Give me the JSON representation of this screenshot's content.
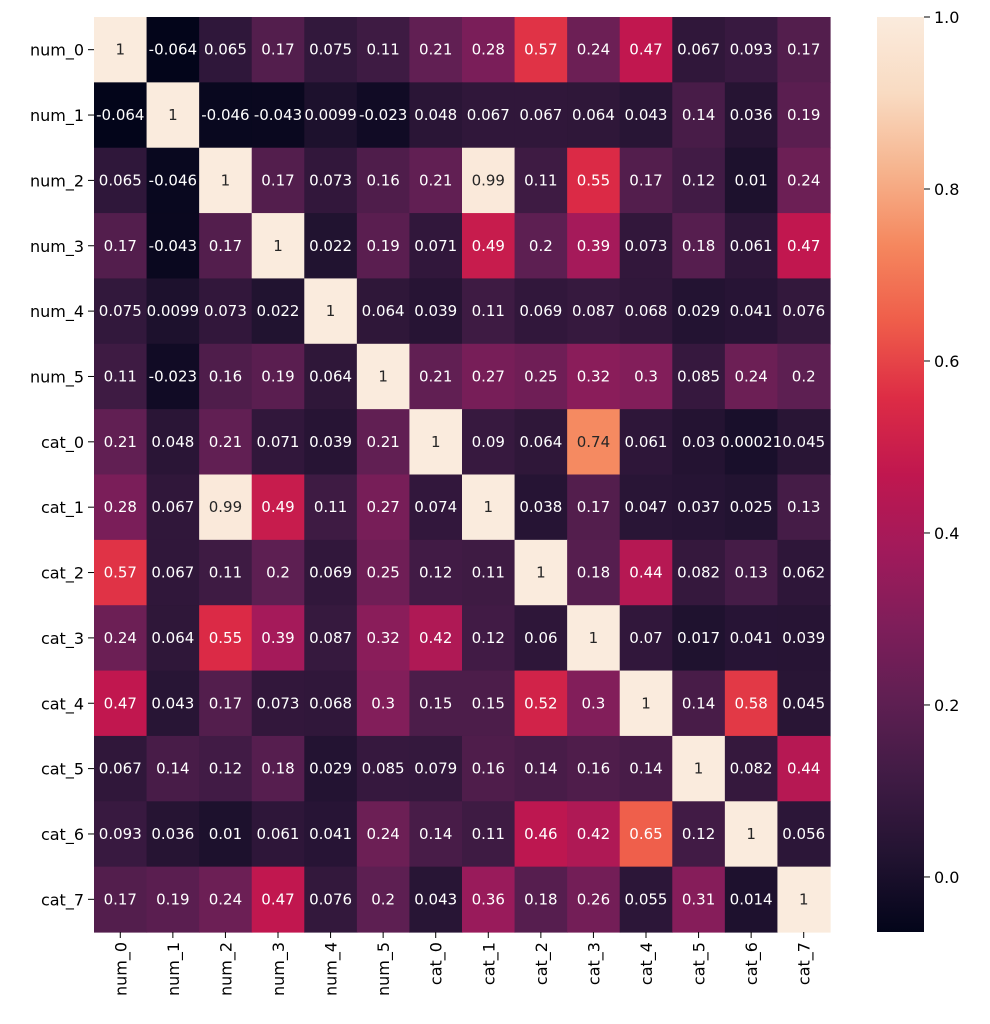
{
  "chart_data": {
    "type": "heatmap",
    "title": "",
    "xlabel": "",
    "ylabel": "",
    "row_labels": [
      "num_0",
      "num_1",
      "num_2",
      "num_3",
      "num_4",
      "num_5",
      "cat_0",
      "cat_1",
      "cat_2",
      "cat_3",
      "cat_4",
      "cat_5",
      "cat_6",
      "cat_7"
    ],
    "col_labels": [
      "num_0",
      "num_1",
      "num_2",
      "num_3",
      "num_4",
      "num_5",
      "cat_0",
      "cat_1",
      "cat_2",
      "cat_3",
      "cat_4",
      "cat_5",
      "cat_6",
      "cat_7"
    ],
    "values": [
      [
        1,
        -0.064,
        0.065,
        0.17,
        0.075,
        0.11,
        0.21,
        0.28,
        0.57,
        0.24,
        0.47,
        0.067,
        0.093,
        0.17
      ],
      [
        -0.064,
        1,
        -0.046,
        -0.043,
        0.0099,
        -0.023,
        0.048,
        0.067,
        0.067,
        0.064,
        0.043,
        0.14,
        0.036,
        0.19
      ],
      [
        0.065,
        -0.046,
        1,
        0.17,
        0.073,
        0.16,
        0.21,
        0.99,
        0.11,
        0.55,
        0.17,
        0.12,
        0.01,
        0.24
      ],
      [
        0.17,
        -0.043,
        0.17,
        1,
        0.022,
        0.19,
        0.071,
        0.49,
        0.2,
        0.39,
        0.073,
        0.18,
        0.061,
        0.47
      ],
      [
        0.075,
        0.0099,
        0.073,
        0.022,
        1,
        0.064,
        0.039,
        0.11,
        0.069,
        0.087,
        0.068,
        0.029,
        0.041,
        0.076
      ],
      [
        0.11,
        -0.023,
        0.16,
        0.19,
        0.064,
        1,
        0.21,
        0.27,
        0.25,
        0.32,
        0.3,
        0.085,
        0.24,
        0.2
      ],
      [
        0.21,
        0.048,
        0.21,
        0.071,
        0.039,
        0.21,
        1,
        0.09,
        0.064,
        0.74,
        0.061,
        0.03,
        0.00021,
        0.045
      ],
      [
        0.28,
        0.067,
        0.99,
        0.49,
        0.11,
        0.27,
        0.074,
        1,
        0.038,
        0.17,
        0.047,
        0.037,
        0.025,
        0.13
      ],
      [
        0.57,
        0.067,
        0.11,
        0.2,
        0.069,
        0.25,
        0.12,
        0.11,
        1,
        0.18,
        0.44,
        0.082,
        0.13,
        0.062
      ],
      [
        0.24,
        0.064,
        0.55,
        0.39,
        0.087,
        0.32,
        0.42,
        0.12,
        0.06,
        1,
        0.07,
        0.017,
        0.041,
        0.039
      ],
      [
        0.47,
        0.043,
        0.17,
        0.073,
        0.068,
        0.3,
        0.15,
        0.15,
        0.52,
        0.3,
        1,
        0.14,
        0.58,
        0.045
      ],
      [
        0.067,
        0.14,
        0.12,
        0.18,
        0.029,
        0.085,
        0.079,
        0.16,
        0.14,
        0.16,
        0.14,
        1,
        0.082,
        0.44
      ],
      [
        0.093,
        0.036,
        0.01,
        0.061,
        0.041,
        0.24,
        0.14,
        0.11,
        0.46,
        0.42,
        0.65,
        0.12,
        1,
        0.056
      ],
      [
        0.17,
        0.19,
        0.24,
        0.47,
        0.076,
        0.2,
        0.043,
        0.36,
        0.18,
        0.26,
        0.055,
        0.31,
        0.014,
        1
      ]
    ],
    "cell_labels": [
      [
        "1",
        "-0.064",
        "0.065",
        "0.17",
        "0.075",
        "0.11",
        "0.21",
        "0.28",
        "0.57",
        "0.24",
        "0.47",
        "0.067",
        "0.093",
        "0.17"
      ],
      [
        "-0.064",
        "1",
        "-0.046",
        "-0.043",
        "0.0099",
        "-0.023",
        "0.048",
        "0.067",
        "0.067",
        "0.064",
        "0.043",
        "0.14",
        "0.036",
        "0.19"
      ],
      [
        "0.065",
        "-0.046",
        "1",
        "0.17",
        "0.073",
        "0.16",
        "0.21",
        "0.99",
        "0.11",
        "0.55",
        "0.17",
        "0.12",
        "0.01",
        "0.24"
      ],
      [
        "0.17",
        "-0.043",
        "0.17",
        "1",
        "0.022",
        "0.19",
        "0.071",
        "0.49",
        "0.2",
        "0.39",
        "0.073",
        "0.18",
        "0.061",
        "0.47"
      ],
      [
        "0.075",
        "0.0099",
        "0.073",
        "0.022",
        "1",
        "0.064",
        "0.039",
        "0.11",
        "0.069",
        "0.087",
        "0.068",
        "0.029",
        "0.041",
        "0.076"
      ],
      [
        "0.11",
        "-0.023",
        "0.16",
        "0.19",
        "0.064",
        "1",
        "0.21",
        "0.27",
        "0.25",
        "0.32",
        "0.3",
        "0.085",
        "0.24",
        "0.2"
      ],
      [
        "0.21",
        "0.048",
        "0.21",
        "0.071",
        "0.039",
        "0.21",
        "1",
        "0.09",
        "0.064",
        "0.74",
        "0.061",
        "0.03",
        "0.00021",
        "0.045"
      ],
      [
        "0.28",
        "0.067",
        "0.99",
        "0.49",
        "0.11",
        "0.27",
        "0.074",
        "1",
        "0.038",
        "0.17",
        "0.047",
        "0.037",
        "0.025",
        "0.13"
      ],
      [
        "0.57",
        "0.067",
        "0.11",
        "0.2",
        "0.069",
        "0.25",
        "0.12",
        "0.11",
        "1",
        "0.18",
        "0.44",
        "0.082",
        "0.13",
        "0.062"
      ],
      [
        "0.24",
        "0.064",
        "0.55",
        "0.39",
        "0.087",
        "0.32",
        "0.42",
        "0.12",
        "0.06",
        "1",
        "0.07",
        "0.017",
        "0.041",
        "0.039"
      ],
      [
        "0.47",
        "0.043",
        "0.17",
        "0.073",
        "0.068",
        "0.3",
        "0.15",
        "0.15",
        "0.52",
        "0.3",
        "1",
        "0.14",
        "0.58",
        "0.045"
      ],
      [
        "0.067",
        "0.14",
        "0.12",
        "0.18",
        "0.029",
        "0.085",
        "0.079",
        "0.16",
        "0.14",
        "0.16",
        "0.14",
        "1",
        "0.082",
        "0.44"
      ],
      [
        "0.093",
        "0.036",
        "0.01",
        "0.061",
        "0.041",
        "0.24",
        "0.14",
        "0.11",
        "0.46",
        "0.42",
        "0.65",
        "0.12",
        "1",
        "0.056"
      ],
      [
        "0.17",
        "0.19",
        "0.24",
        "0.47",
        "0.076",
        "0.2",
        "0.043",
        "0.36",
        "0.18",
        "0.26",
        "0.055",
        "0.31",
        "0.014",
        "1"
      ]
    ],
    "colorbar": {
      "vmin": -0.064,
      "vmax": 1.0,
      "ticks": [
        0.0,
        0.2,
        0.4,
        0.6,
        0.8,
        1.0
      ],
      "tick_labels": [
        "0.0",
        "0.2",
        "0.4",
        "0.6",
        "0.8",
        "1.0"
      ]
    },
    "colormap": "rocket",
    "colormap_stops": [
      "#03051a",
      "#221331",
      "#3f1b44",
      "#5e1f52",
      "#7e1e5a",
      "#a11a5b",
      "#c0174f",
      "#dd2c45",
      "#ef5d4a",
      "#f5875e",
      "#f6b48e",
      "#f9dbc2",
      "#faebdd"
    ],
    "grid": false,
    "legend": "colorbar-right"
  }
}
